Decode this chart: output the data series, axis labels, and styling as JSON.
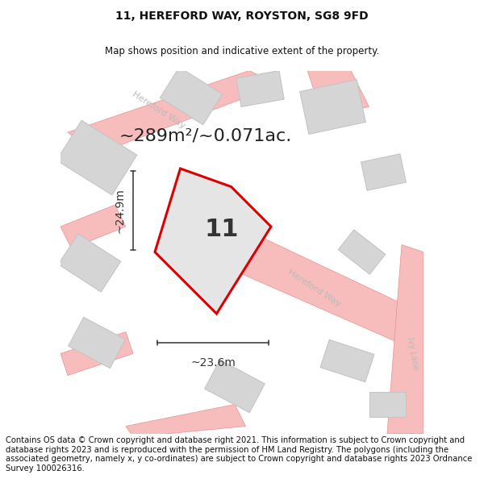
{
  "title": "11, HEREFORD WAY, ROYSTON, SG8 9FD",
  "subtitle": "Map shows position and indicative extent of the property.",
  "area_text": "~289m²/~0.071ac.",
  "width_label": "~23.6m",
  "height_label": "~24.9m",
  "plot_number": "11",
  "footer_text": "Contains OS data © Crown copyright and database right 2021. This information is subject to Crown copyright and database rights 2023 and is reproduced with the permission of HM Land Registry. The polygons (including the associated geometry, namely x, y co-ordinates) are subject to Crown copyright and database rights 2023 Ordnance Survey 100026316.",
  "bg_color": "#ffffff",
  "map_bg": "#f8f8f8",
  "road_fill": "#f7bcbc",
  "road_edge": "#e89090",
  "building_fill": "#d5d5d5",
  "building_edge": "#c5c5c5",
  "plot_fill": "#e5e5e5",
  "plot_edge": "#dd0000",
  "plot_lw": 2.2,
  "street_color": "#bbbbbb",
  "dim_color": "#333333",
  "title_fontsize": 10,
  "subtitle_fontsize": 8.5,
  "area_fontsize": 16,
  "number_fontsize": 22,
  "dim_fontsize": 10,
  "street_fontsize": 8,
  "footer_fontsize": 7.2
}
